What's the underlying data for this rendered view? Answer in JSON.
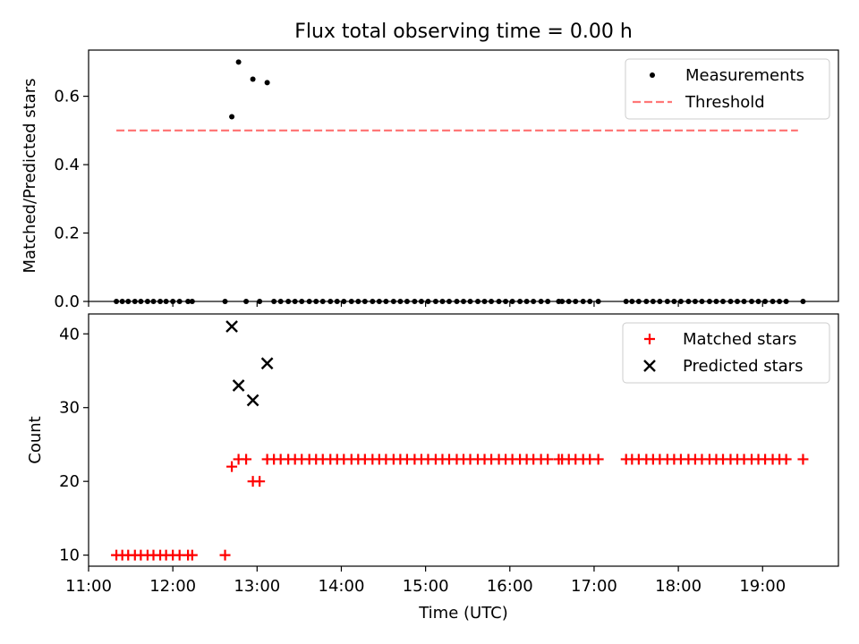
{
  "figure": {
    "title": "Flux total observing time = 0.00 h"
  },
  "chart_data": [
    {
      "type": "scatter",
      "title": "Flux total observing time = 0.00 h",
      "xlabel": "",
      "ylabel": "Matched/Predicted stars",
      "xlim": [
        11.0,
        19.9
      ],
      "ylim": [
        0.0,
        0.735
      ],
      "y_ticks": [
        "0.0",
        "0.2",
        "0.4",
        "0.6"
      ],
      "legend_position": "top-right",
      "series": [
        {
          "name": "Measurements",
          "marker": "dot",
          "color": "#000000",
          "points": [
            [
              11.33,
              0
            ],
            [
              11.4,
              0
            ],
            [
              11.47,
              0
            ],
            [
              11.55,
              0
            ],
            [
              11.62,
              0
            ],
            [
              11.7,
              0
            ],
            [
              11.77,
              0
            ],
            [
              11.85,
              0
            ],
            [
              11.92,
              0
            ],
            [
              12.0,
              0
            ],
            [
              12.08,
              0
            ],
            [
              12.18,
              0
            ],
            [
              12.23,
              0
            ],
            [
              12.62,
              0
            ],
            [
              12.7,
              0.54
            ],
            [
              12.78,
              0.7
            ],
            [
              12.87,
              0
            ],
            [
              12.95,
              0.65
            ],
            [
              13.03,
              0
            ],
            [
              13.12,
              0.64
            ],
            [
              13.2,
              0
            ],
            [
              13.28,
              0
            ],
            [
              13.37,
              0
            ],
            [
              13.45,
              0
            ],
            [
              13.53,
              0
            ],
            [
              13.62,
              0
            ],
            [
              13.7,
              0
            ],
            [
              13.78,
              0
            ],
            [
              13.87,
              0
            ],
            [
              13.95,
              0
            ],
            [
              14.03,
              0
            ],
            [
              14.12,
              0
            ],
            [
              14.2,
              0
            ],
            [
              14.28,
              0
            ],
            [
              14.37,
              0
            ],
            [
              14.45,
              0
            ],
            [
              14.53,
              0
            ],
            [
              14.62,
              0
            ],
            [
              14.7,
              0
            ],
            [
              14.78,
              0
            ],
            [
              14.87,
              0
            ],
            [
              14.95,
              0
            ],
            [
              15.03,
              0
            ],
            [
              15.12,
              0
            ],
            [
              15.2,
              0
            ],
            [
              15.28,
              0
            ],
            [
              15.37,
              0
            ],
            [
              15.45,
              0
            ],
            [
              15.53,
              0
            ],
            [
              15.62,
              0
            ],
            [
              15.7,
              0
            ],
            [
              15.78,
              0
            ],
            [
              15.87,
              0
            ],
            [
              15.95,
              0
            ],
            [
              16.03,
              0
            ],
            [
              16.12,
              0
            ],
            [
              16.2,
              0
            ],
            [
              16.28,
              0
            ],
            [
              16.37,
              0
            ],
            [
              16.45,
              0
            ],
            [
              16.58,
              0
            ],
            [
              16.62,
              0
            ],
            [
              16.7,
              0
            ],
            [
              16.78,
              0
            ],
            [
              16.87,
              0
            ],
            [
              16.95,
              0
            ],
            [
              17.05,
              0
            ],
            [
              17.38,
              0
            ],
            [
              17.45,
              0
            ],
            [
              17.53,
              0
            ],
            [
              17.62,
              0
            ],
            [
              17.7,
              0
            ],
            [
              17.78,
              0
            ],
            [
              17.87,
              0
            ],
            [
              17.95,
              0
            ],
            [
              18.03,
              0
            ],
            [
              18.12,
              0
            ],
            [
              18.2,
              0
            ],
            [
              18.28,
              0
            ],
            [
              18.37,
              0
            ],
            [
              18.45,
              0
            ],
            [
              18.53,
              0
            ],
            [
              18.62,
              0
            ],
            [
              18.7,
              0
            ],
            [
              18.78,
              0
            ],
            [
              18.87,
              0
            ],
            [
              18.95,
              0
            ],
            [
              19.03,
              0
            ],
            [
              19.12,
              0
            ],
            [
              19.2,
              0
            ],
            [
              19.28,
              0
            ],
            [
              19.48,
              0
            ]
          ]
        },
        {
          "name": "Threshold",
          "style": "dashed",
          "color": "#ff7777",
          "x": [
            11.33,
            19.42
          ],
          "y": [
            0.5,
            0.5
          ]
        }
      ]
    },
    {
      "type": "scatter",
      "xlabel": "Time (UTC)",
      "ylabel": "Count",
      "xlim": [
        11.0,
        19.9
      ],
      "ylim": [
        8.5,
        42.7
      ],
      "x_ticks": [
        "11:00",
        "12:00",
        "13:00",
        "14:00",
        "15:00",
        "16:00",
        "17:00",
        "18:00",
        "19:00"
      ],
      "y_ticks": [
        "10",
        "20",
        "30",
        "40"
      ],
      "legend_position": "top-right",
      "series": [
        {
          "name": "Matched stars",
          "marker": "plus",
          "color": "#ff0000",
          "points": [
            [
              11.33,
              10
            ],
            [
              11.4,
              10
            ],
            [
              11.47,
              10
            ],
            [
              11.55,
              10
            ],
            [
              11.62,
              10
            ],
            [
              11.7,
              10
            ],
            [
              11.77,
              10
            ],
            [
              11.85,
              10
            ],
            [
              11.92,
              10
            ],
            [
              12.0,
              10
            ],
            [
              12.08,
              10
            ],
            [
              12.18,
              10
            ],
            [
              12.23,
              10
            ],
            [
              12.62,
              10
            ],
            [
              12.7,
              22
            ],
            [
              12.78,
              23
            ],
            [
              12.87,
              23
            ],
            [
              12.95,
              20
            ],
            [
              13.03,
              20
            ],
            [
              13.12,
              23
            ],
            [
              13.2,
              23
            ],
            [
              13.28,
              23
            ],
            [
              13.37,
              23
            ],
            [
              13.45,
              23
            ],
            [
              13.53,
              23
            ],
            [
              13.62,
              23
            ],
            [
              13.7,
              23
            ],
            [
              13.78,
              23
            ],
            [
              13.87,
              23
            ],
            [
              13.95,
              23
            ],
            [
              14.03,
              23
            ],
            [
              14.12,
              23
            ],
            [
              14.2,
              23
            ],
            [
              14.28,
              23
            ],
            [
              14.37,
              23
            ],
            [
              14.45,
              23
            ],
            [
              14.53,
              23
            ],
            [
              14.62,
              23
            ],
            [
              14.7,
              23
            ],
            [
              14.78,
              23
            ],
            [
              14.87,
              23
            ],
            [
              14.95,
              23
            ],
            [
              15.03,
              23
            ],
            [
              15.12,
              23
            ],
            [
              15.2,
              23
            ],
            [
              15.28,
              23
            ],
            [
              15.37,
              23
            ],
            [
              15.45,
              23
            ],
            [
              15.53,
              23
            ],
            [
              15.62,
              23
            ],
            [
              15.7,
              23
            ],
            [
              15.78,
              23
            ],
            [
              15.87,
              23
            ],
            [
              15.95,
              23
            ],
            [
              16.03,
              23
            ],
            [
              16.12,
              23
            ],
            [
              16.2,
              23
            ],
            [
              16.28,
              23
            ],
            [
              16.37,
              23
            ],
            [
              16.45,
              23
            ],
            [
              16.58,
              23
            ],
            [
              16.62,
              23
            ],
            [
              16.7,
              23
            ],
            [
              16.78,
              23
            ],
            [
              16.87,
              23
            ],
            [
              16.95,
              23
            ],
            [
              17.05,
              23
            ],
            [
              17.38,
              23
            ],
            [
              17.45,
              23
            ],
            [
              17.53,
              23
            ],
            [
              17.62,
              23
            ],
            [
              17.7,
              23
            ],
            [
              17.78,
              23
            ],
            [
              17.87,
              23
            ],
            [
              17.95,
              23
            ],
            [
              18.03,
              23
            ],
            [
              18.12,
              23
            ],
            [
              18.2,
              23
            ],
            [
              18.28,
              23
            ],
            [
              18.37,
              23
            ],
            [
              18.45,
              23
            ],
            [
              18.53,
              23
            ],
            [
              18.62,
              23
            ],
            [
              18.7,
              23
            ],
            [
              18.78,
              23
            ],
            [
              18.87,
              23
            ],
            [
              18.95,
              23
            ],
            [
              19.03,
              23
            ],
            [
              19.12,
              23
            ],
            [
              19.2,
              23
            ],
            [
              19.28,
              23
            ],
            [
              19.48,
              23
            ]
          ]
        },
        {
          "name": "Predicted stars",
          "marker": "x",
          "color": "#000000",
          "points": [
            [
              12.7,
              41
            ],
            [
              12.78,
              33
            ],
            [
              12.95,
              31
            ],
            [
              13.12,
              36
            ]
          ]
        }
      ]
    }
  ]
}
